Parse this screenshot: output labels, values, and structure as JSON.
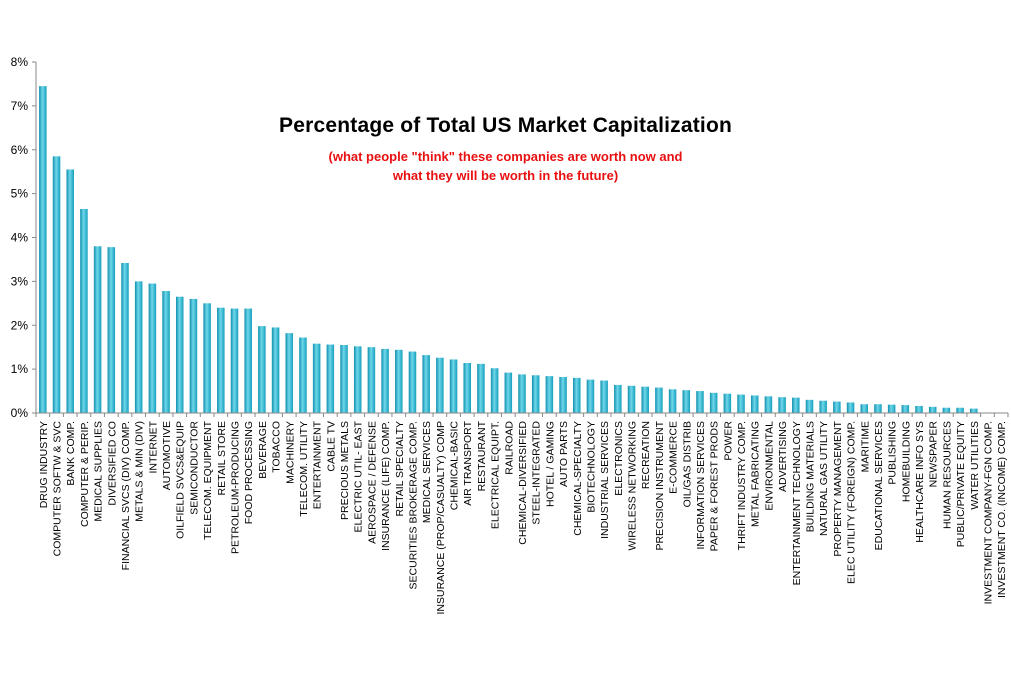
{
  "chart_data": {
    "type": "bar",
    "title": "Percentage of Total US Market Capitalization",
    "subtitle": [
      "(what people \"think\" these companies are worth now and",
      "what they will be worth in the future)"
    ],
    "xlabel": "",
    "ylabel": "",
    "ylim": [
      0,
      8
    ],
    "yticks": [
      "0%",
      "1%",
      "2%",
      "3%",
      "4%",
      "5%",
      "6%",
      "7%",
      "8%"
    ],
    "bar_color": "#2ab6cf",
    "categories": [
      "DRUG INDUSTRY",
      "COMPUTER SOFTW & SVC",
      "BANK COMP.",
      "COMPUTER & PERIP.",
      "MEDICAL SUPPLIES",
      "DIVERSIFIED CO",
      "FINANCIAL SVCS (DIV)   COMP.",
      "METALS & MIN (DIV)",
      "INTERNET",
      "AUTOMOTIVE",
      "OILFIELD SVCS&EQUIP",
      "SEMICONDUCTOR",
      "TELECOM. EQUIPMENT",
      "RETAIL STORE",
      "PETROLEUM-PRODUCING",
      "FOOD PROCESSING",
      "BEVERAGE",
      "TOBACCO",
      "MACHINERY",
      "TELECOM. UTILITY",
      "ENTERTAINMENT",
      "CABLE TV",
      "PRECIOUS METALS",
      "ELECTRIC UTIL- EAST",
      "AEROSPACE / DEFENSE",
      "INSURANCE (LIFE) COMP.",
      "RETAIL SPECIALTY",
      "SECURITIES BROKERAGE COMP.",
      "MEDICAL SERVICES",
      "INSURANCE (PROP/CASUALTY) COMP",
      "CHEMICAL-BASIC",
      "AIR TRANSPORT",
      "RESTAURANT",
      "ELECTRICAL EQUIPT.",
      "RAILROAD",
      "CHEMICAL-DIVERSIFIED",
      "STEEL-INTEGRATED",
      "HOTEL / GAMING",
      "AUTO PARTS",
      "CHEMICAL-SPECIALTY",
      "BIOTECHNOLOGY",
      "INDUSTRIAL SERVICES",
      "ELECTRONICS",
      "WIRELESS NETWORKING",
      "RECREATION",
      "PRECISION INSTRUMENT",
      "E-COMMERCE",
      "OIL/GAS DISTRIB",
      "INFORMATION SERVICES",
      "PAPER & FOREST PRODS",
      "POWER",
      "THRIFT INDUSTRY COMP.",
      "METAL FABRICATING",
      "ENVIRONMENTAL",
      "ADVERTISING",
      "ENTERTAINMENT TECHNOLOGY",
      "BUILDING MATERIALS",
      "NATURAL GAS UTILITY",
      "PROPERTY MANAGEMENT",
      "ELEC UTILITY (FOREIGN) COMP.",
      "MARITIME",
      "EDUCATIONAL SERVICES",
      "PUBLISHING",
      "HOMEBUILDING",
      "HEALTHCARE INFO SYS",
      "NEWSPAPER",
      "HUMAN RESOURCES",
      "PUBLIC/PRIVATE EQUITY",
      "WATER UTILITIES",
      "INVESTMENT COMPANY-FGN COMP.",
      "INVESTMENT CO. (INCOME) COMP."
    ],
    "values": [
      7.45,
      5.85,
      5.55,
      4.65,
      3.8,
      3.78,
      3.42,
      3.0,
      2.95,
      2.78,
      2.65,
      2.6,
      2.5,
      2.4,
      2.38,
      2.38,
      1.98,
      1.95,
      1.82,
      1.72,
      1.58,
      1.56,
      1.55,
      1.52,
      1.5,
      1.46,
      1.44,
      1.4,
      1.32,
      1.26,
      1.22,
      1.14,
      1.12,
      1.02,
      0.92,
      0.88,
      0.86,
      0.84,
      0.82,
      0.8,
      0.76,
      0.74,
      0.64,
      0.62,
      0.6,
      0.58,
      0.54,
      0.52,
      0.5,
      0.46,
      0.44,
      0.42,
      0.4,
      0.38,
      0.36,
      0.35,
      0.3,
      0.28,
      0.26,
      0.24,
      0.2,
      0.2,
      0.19,
      0.18,
      0.16,
      0.14,
      0.12,
      0.12,
      0.1,
      0.0,
      0.0
    ]
  }
}
